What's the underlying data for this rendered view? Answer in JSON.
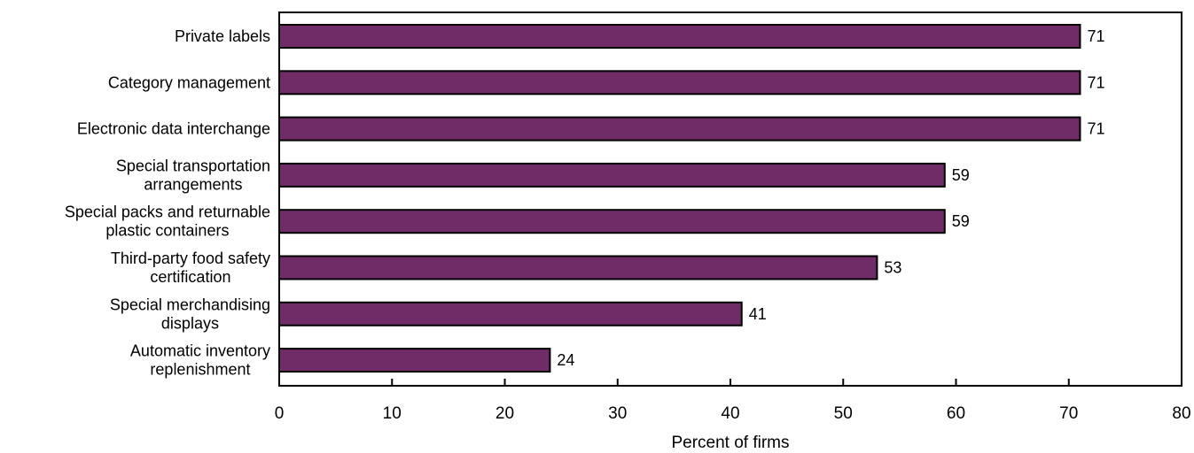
{
  "chart_data": {
    "type": "bar",
    "orientation": "horizontal",
    "categories": [
      "Private labels",
      "Category management",
      "Electronic data interchange",
      "Special transportation\narrangements",
      "Special packs and returnable\nplastic containers",
      "Third-party food safety\ncertification",
      "Special merchandising\ndisplays",
      "Automatic inventory\nreplenishment"
    ],
    "values": [
      71,
      71,
      71,
      59,
      59,
      53,
      41,
      24
    ],
    "value_labels": [
      "71",
      "71",
      "71",
      "59",
      "59",
      "53",
      "41",
      "24"
    ],
    "xlabel": "Percent of firms",
    "ylabel": "",
    "title": "",
    "xlim": [
      0,
      80
    ],
    "xticks": [
      0,
      10,
      20,
      30,
      40,
      50,
      60,
      70,
      80
    ],
    "tick_labels": [
      "0",
      "10",
      "20",
      "30",
      "40",
      "50",
      "60",
      "70",
      "80"
    ],
    "grid": false,
    "bar_color": "#6f2c67",
    "bar_edge_color": "#000000"
  }
}
